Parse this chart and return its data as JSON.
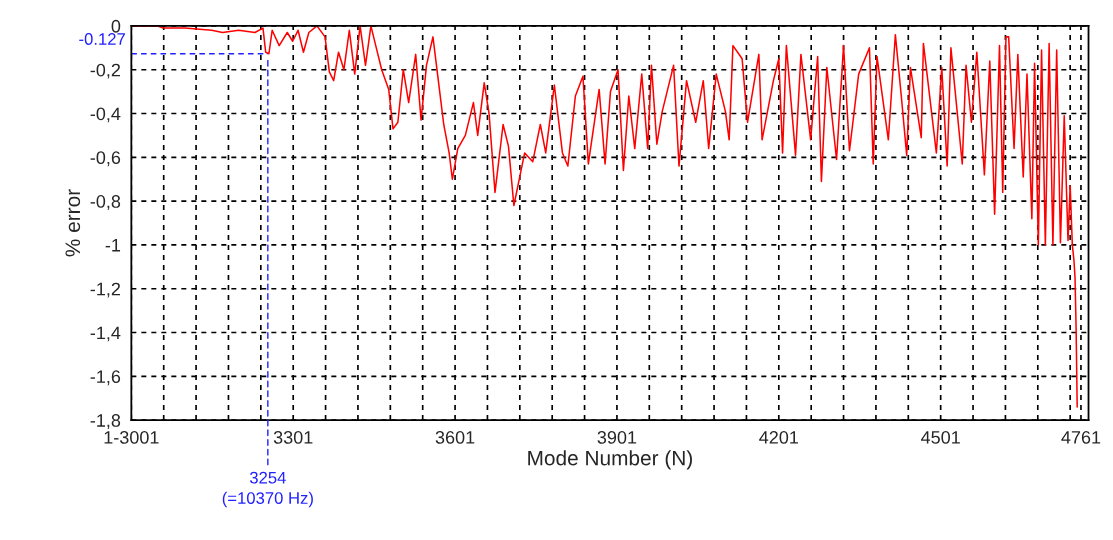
{
  "chart_data": {
    "type": "line",
    "xlabel": "Mode Number (N)",
    "ylabel": "% error",
    "x": [
      3001,
      3050,
      3060,
      3100,
      3150,
      3170,
      3200,
      3230,
      3245,
      3250,
      3256,
      3262,
      3275,
      3290,
      3300,
      3310,
      3320,
      3330,
      3345,
      3360,
      3368,
      3376,
      3385,
      3395,
      3405,
      3415,
      3425,
      3435,
      3445,
      3455,
      3465,
      3478,
      3486,
      3495,
      3505,
      3515,
      3528,
      3538,
      3548,
      3560,
      3570,
      3580,
      3590,
      3596,
      3606,
      3620,
      3635,
      3643,
      3655,
      3664,
      3675,
      3690,
      3700,
      3710,
      3720,
      3730,
      3745,
      3759,
      3769,
      3785,
      3800,
      3810,
      3824,
      3838,
      3848,
      3868,
      3879,
      3889,
      3903,
      3913,
      3923,
      3934,
      3947,
      3958,
      3965,
      3975,
      3985,
      4006,
      4016,
      4030,
      4047,
      4061,
      4071,
      4085,
      4102,
      4109,
      4116,
      4133,
      4143,
      4164,
      4170,
      4191,
      4201,
      4208,
      4215,
      4232,
      4242,
      4260,
      4273,
      4280,
      4290,
      4308,
      4321,
      4332,
      4349,
      4369,
      4376,
      4383,
      4404,
      4417,
      4428,
      4438,
      4445,
      4465,
      4469,
      4493,
      4503,
      4513,
      4520,
      4541,
      4548,
      4558,
      4568,
      4582,
      4592,
      4601,
      4610,
      4616,
      4622,
      4627,
      4637,
      4644,
      4654,
      4661,
      4670,
      4675,
      4682,
      4688,
      4695,
      4702,
      4709,
      4716,
      4723,
      4730,
      4737,
      4741,
      4745,
      4748,
      4750,
      4752,
      4754
    ],
    "series": [
      {
        "color": "#ff0000",
        "values": [
          0,
          0,
          -0.01,
          -0.01,
          -0.02,
          -0.03,
          -0.02,
          -0.03,
          -0.01,
          -0.12,
          -0.127,
          -0.02,
          -0.09,
          -0.03,
          -0.07,
          -0.02,
          -0.12,
          -0.03,
          0,
          -0.05,
          -0.21,
          -0.25,
          -0.12,
          -0.2,
          -0.02,
          -0.22,
          0,
          -0.18,
          0,
          -0.1,
          -0.2,
          -0.29,
          -0.47,
          -0.44,
          -0.2,
          -0.35,
          -0.13,
          -0.43,
          -0.18,
          -0.05,
          -0.25,
          -0.45,
          -0.58,
          -0.7,
          -0.56,
          -0.5,
          -0.35,
          -0.5,
          -0.26,
          -0.4,
          -0.76,
          -0.45,
          -0.55,
          -0.82,
          -0.7,
          -0.58,
          -0.62,
          -0.45,
          -0.58,
          -0.27,
          -0.58,
          -0.64,
          -0.32,
          -0.23,
          -0.63,
          -0.29,
          -0.63,
          -0.3,
          -0.2,
          -0.66,
          -0.32,
          -0.56,
          -0.22,
          -0.56,
          -0.18,
          -0.54,
          -0.39,
          -0.18,
          -0.64,
          -0.25,
          -0.44,
          -0.25,
          -0.56,
          -0.22,
          -0.39,
          -0.52,
          -0.09,
          -0.15,
          -0.44,
          -0.13,
          -0.52,
          -0.25,
          -0.15,
          -0.58,
          -0.09,
          -0.59,
          -0.13,
          -0.52,
          -0.14,
          -0.71,
          -0.19,
          -0.61,
          -0.09,
          -0.57,
          -0.22,
          -0.1,
          -0.63,
          -0.14,
          -0.52,
          -0.04,
          -0.32,
          -0.59,
          -0.19,
          -0.51,
          -0.08,
          -0.58,
          -0.19,
          -0.64,
          -0.1,
          -0.63,
          -0.18,
          -0.44,
          -0.12,
          -0.68,
          -0.16,
          -0.86,
          -0.09,
          -0.76,
          -0.05,
          -0.05,
          -0.56,
          -0.13,
          -0.69,
          -0.22,
          -0.88,
          -0.17,
          -1.0,
          -0.11,
          -1.0,
          -0.08,
          -1.0,
          -0.11,
          -0.99,
          -0.41,
          -0.98,
          -0.73,
          -1.0,
          -1.07,
          -1.15,
          -1.38,
          -1.74
        ]
      }
    ],
    "xlim": [
      3001,
      4775
    ],
    "xticks": [
      {
        "value": 3001,
        "label": "1-3001"
      },
      {
        "value": 3061,
        "label": null
      },
      {
        "value": 3121,
        "label": null
      },
      {
        "value": 3181,
        "label": null
      },
      {
        "value": 3241,
        "label": null
      },
      3301,
      {
        "value": 3361,
        "label": null
      },
      {
        "value": 3421,
        "label": null
      },
      {
        "value": 3481,
        "label": null
      },
      {
        "value": 3541,
        "label": null
      },
      3601,
      {
        "value": 3661,
        "label": null
      },
      {
        "value": 3721,
        "label": null
      },
      {
        "value": 3781,
        "label": null
      },
      {
        "value": 3841,
        "label": null
      },
      3901,
      {
        "value": 3961,
        "label": null
      },
      {
        "value": 4021,
        "label": null
      },
      {
        "value": 4081,
        "label": null
      },
      {
        "value": 4141,
        "label": null
      },
      4201,
      {
        "value": 4261,
        "label": null
      },
      {
        "value": 4321,
        "label": null
      },
      {
        "value": 4381,
        "label": null
      },
      {
        "value": 4441,
        "label": null
      },
      4501,
      {
        "value": 4561,
        "label": null
      },
      {
        "value": 4621,
        "label": null
      },
      {
        "value": 4681,
        "label": null
      },
      {
        "value": 4741,
        "label": null
      },
      4761
    ],
    "ylim": [
      -1.8,
      0
    ],
    "yticks": [
      {
        "value": -1.8,
        "label": "-1,8"
      },
      {
        "value": -1.6,
        "label": "-1,6"
      },
      {
        "value": -1.4,
        "label": "-1,4"
      },
      {
        "value": -1.2,
        "label": "-1,2"
      },
      {
        "value": -1,
        "label": "-1"
      },
      {
        "value": -0.8,
        "label": "-0,8"
      },
      {
        "value": -0.6,
        "label": "-0,6"
      },
      {
        "value": -0.4,
        "label": "-0,4"
      },
      {
        "value": -0.2,
        "label": "-0,2"
      },
      0
    ],
    "grid": true,
    "annotations": [
      {
        "text": "-0.127",
        "x": 3254,
        "y": -0.127
      },
      {
        "text": "3254\n(=10370 Hz)",
        "x": 3254,
        "y": -0.127
      }
    ]
  }
}
